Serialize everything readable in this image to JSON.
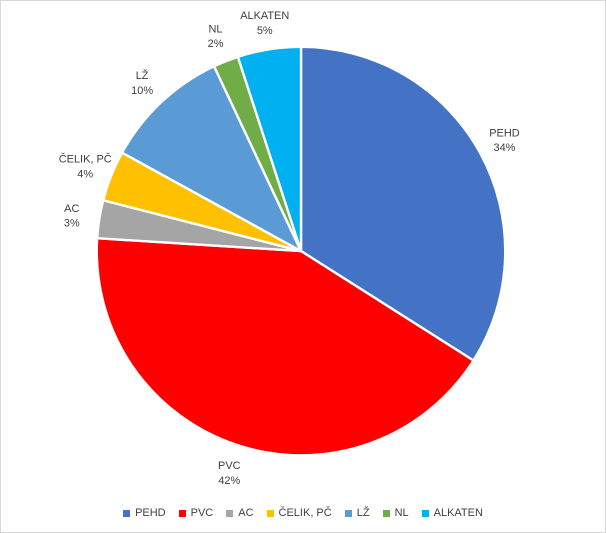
{
  "chart_data": {
    "type": "pie",
    "categories": [
      "PEHD",
      "PVC",
      "AC",
      "ČELIK, PČ",
      "LŽ",
      "NL",
      "ALKATEN"
    ],
    "values": [
      34,
      42,
      3,
      4,
      10,
      2,
      5
    ],
    "value_unit": "%",
    "data_labels": [
      "PEHD 34%",
      "PVC 42%",
      "AC 3%",
      "ČELIK, PČ 4%",
      "LŽ 10%",
      "NL 2%",
      "ALKATEN 5%"
    ],
    "colors": [
      "#4472C4",
      "#FF0000",
      "#A5A5A5",
      "#FFC000",
      "#5B9BD5",
      "#70AD47",
      "#00B0F0"
    ],
    "title": "",
    "start_angle_deg": 0,
    "direction": "clockwise",
    "legend_position": "bottom",
    "legend_items": [
      "PEHD",
      "PVC",
      "AC",
      "ČELIK, PČ",
      "LŽ",
      "NL",
      "ALKATEN"
    ]
  },
  "styles": {
    "background_color": "#FFFFFF",
    "chart_border_color": "#D9D9D9",
    "slice_separator_color": "#FFFFFF",
    "label_text_color": "#404040",
    "legend_text_color": "#404040"
  }
}
